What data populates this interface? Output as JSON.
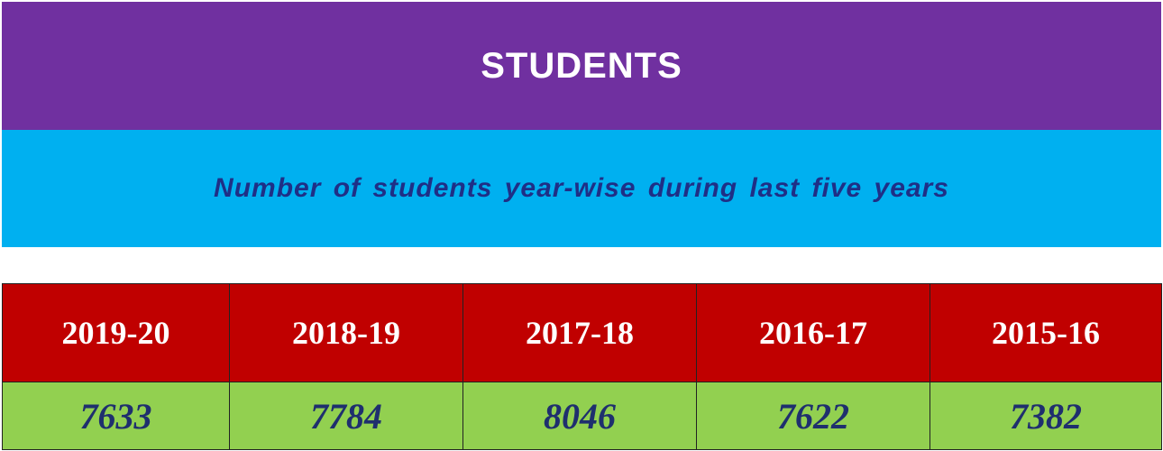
{
  "header": {
    "title": "STUDENTS",
    "subtitle": "Number of students year-wise during last five years"
  },
  "colors": {
    "title_band": "#7030a0",
    "subtitle_band": "#00b0f0",
    "year_row": "#c00000",
    "value_row": "#92d050",
    "value_text": "#1f2f6e"
  },
  "chart_data": {
    "type": "table",
    "title": "STUDENTS",
    "subtitle": "Number of students year-wise during last five years",
    "categories": [
      "2019-20",
      "2018-19",
      "2017-18",
      "2016-17",
      "2015-16"
    ],
    "values": [
      7633,
      7784,
      8046,
      7622,
      7382
    ]
  }
}
